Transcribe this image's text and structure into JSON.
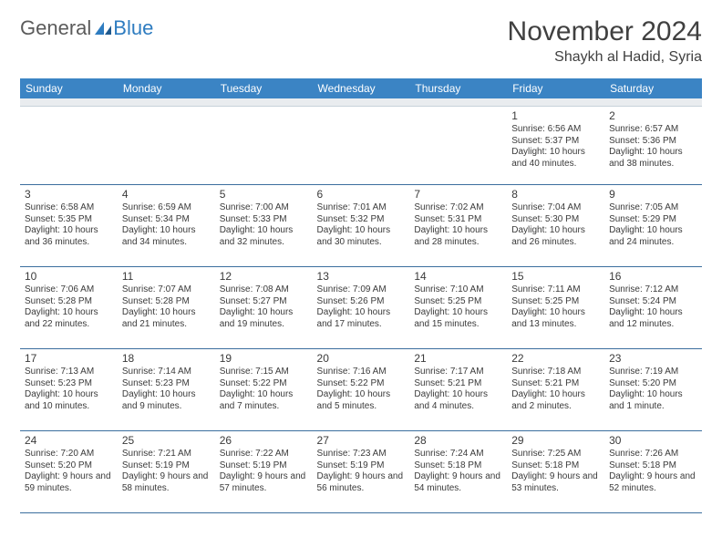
{
  "logo": {
    "text1": "General",
    "text2": "Blue"
  },
  "title": "November 2024",
  "location": "Shaykh al Hadid, Syria",
  "colors": {
    "header_bg": "#3b84c4",
    "header_fg": "#ffffff",
    "row_border": "#3b6e9e",
    "spacer_bg": "#e9ecef",
    "text": "#3a3a3a",
    "logo_gray": "#5b5b5b",
    "logo_blue": "#2e7cc0"
  },
  "day_headers": [
    "Sunday",
    "Monday",
    "Tuesday",
    "Wednesday",
    "Thursday",
    "Friday",
    "Saturday"
  ],
  "weeks": [
    [
      null,
      null,
      null,
      null,
      null,
      {
        "n": "1",
        "sr": "6:56 AM",
        "ss": "5:37 PM",
        "dl": "10 hours and 40 minutes."
      },
      {
        "n": "2",
        "sr": "6:57 AM",
        "ss": "5:36 PM",
        "dl": "10 hours and 38 minutes."
      }
    ],
    [
      {
        "n": "3",
        "sr": "6:58 AM",
        "ss": "5:35 PM",
        "dl": "10 hours and 36 minutes."
      },
      {
        "n": "4",
        "sr": "6:59 AM",
        "ss": "5:34 PM",
        "dl": "10 hours and 34 minutes."
      },
      {
        "n": "5",
        "sr": "7:00 AM",
        "ss": "5:33 PM",
        "dl": "10 hours and 32 minutes."
      },
      {
        "n": "6",
        "sr": "7:01 AM",
        "ss": "5:32 PM",
        "dl": "10 hours and 30 minutes."
      },
      {
        "n": "7",
        "sr": "7:02 AM",
        "ss": "5:31 PM",
        "dl": "10 hours and 28 minutes."
      },
      {
        "n": "8",
        "sr": "7:04 AM",
        "ss": "5:30 PM",
        "dl": "10 hours and 26 minutes."
      },
      {
        "n": "9",
        "sr": "7:05 AM",
        "ss": "5:29 PM",
        "dl": "10 hours and 24 minutes."
      }
    ],
    [
      {
        "n": "10",
        "sr": "7:06 AM",
        "ss": "5:28 PM",
        "dl": "10 hours and 22 minutes."
      },
      {
        "n": "11",
        "sr": "7:07 AM",
        "ss": "5:28 PM",
        "dl": "10 hours and 21 minutes."
      },
      {
        "n": "12",
        "sr": "7:08 AM",
        "ss": "5:27 PM",
        "dl": "10 hours and 19 minutes."
      },
      {
        "n": "13",
        "sr": "7:09 AM",
        "ss": "5:26 PM",
        "dl": "10 hours and 17 minutes."
      },
      {
        "n": "14",
        "sr": "7:10 AM",
        "ss": "5:25 PM",
        "dl": "10 hours and 15 minutes."
      },
      {
        "n": "15",
        "sr": "7:11 AM",
        "ss": "5:25 PM",
        "dl": "10 hours and 13 minutes."
      },
      {
        "n": "16",
        "sr": "7:12 AM",
        "ss": "5:24 PM",
        "dl": "10 hours and 12 minutes."
      }
    ],
    [
      {
        "n": "17",
        "sr": "7:13 AM",
        "ss": "5:23 PM",
        "dl": "10 hours and 10 minutes."
      },
      {
        "n": "18",
        "sr": "7:14 AM",
        "ss": "5:23 PM",
        "dl": "10 hours and 9 minutes."
      },
      {
        "n": "19",
        "sr": "7:15 AM",
        "ss": "5:22 PM",
        "dl": "10 hours and 7 minutes."
      },
      {
        "n": "20",
        "sr": "7:16 AM",
        "ss": "5:22 PM",
        "dl": "10 hours and 5 minutes."
      },
      {
        "n": "21",
        "sr": "7:17 AM",
        "ss": "5:21 PM",
        "dl": "10 hours and 4 minutes."
      },
      {
        "n": "22",
        "sr": "7:18 AM",
        "ss": "5:21 PM",
        "dl": "10 hours and 2 minutes."
      },
      {
        "n": "23",
        "sr": "7:19 AM",
        "ss": "5:20 PM",
        "dl": "10 hours and 1 minute."
      }
    ],
    [
      {
        "n": "24",
        "sr": "7:20 AM",
        "ss": "5:20 PM",
        "dl": "9 hours and 59 minutes."
      },
      {
        "n": "25",
        "sr": "7:21 AM",
        "ss": "5:19 PM",
        "dl": "9 hours and 58 minutes."
      },
      {
        "n": "26",
        "sr": "7:22 AM",
        "ss": "5:19 PM",
        "dl": "9 hours and 57 minutes."
      },
      {
        "n": "27",
        "sr": "7:23 AM",
        "ss": "5:19 PM",
        "dl": "9 hours and 56 minutes."
      },
      {
        "n": "28",
        "sr": "7:24 AM",
        "ss": "5:18 PM",
        "dl": "9 hours and 54 minutes."
      },
      {
        "n": "29",
        "sr": "7:25 AM",
        "ss": "5:18 PM",
        "dl": "9 hours and 53 minutes."
      },
      {
        "n": "30",
        "sr": "7:26 AM",
        "ss": "5:18 PM",
        "dl": "9 hours and 52 minutes."
      }
    ]
  ],
  "labels": {
    "sunrise": "Sunrise:",
    "sunset": "Sunset:",
    "daylight": "Daylight:"
  }
}
